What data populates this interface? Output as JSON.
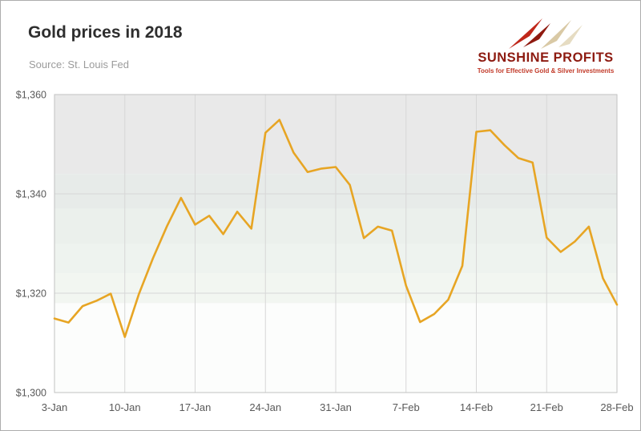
{
  "header": {
    "title": "Gold prices in 2018",
    "source": "Source: St. Louis Fed"
  },
  "logo": {
    "name": "SUNSHINE PROFITS",
    "tagline": "Tools for Effective Gold & Silver Investments",
    "brand_color": "#8d1a10",
    "tagline_color": "#c23b2a"
  },
  "chart_data": {
    "type": "line",
    "title": "Gold prices in 2018",
    "source_note": "Source: St. Louis Fed",
    "x": [
      "3-Jan",
      "4-Jan",
      "5-Jan",
      "8-Jan",
      "9-Jan",
      "10-Jan",
      "11-Jan",
      "12-Jan",
      "15-Jan",
      "16-Jan",
      "17-Jan",
      "18-Jan",
      "19-Jan",
      "22-Jan",
      "23-Jan",
      "24-Jan",
      "25-Jan",
      "26-Jan",
      "29-Jan",
      "30-Jan",
      "31-Jan",
      "1-Feb",
      "2-Feb",
      "5-Feb",
      "6-Feb",
      "7-Feb",
      "8-Feb",
      "9-Feb",
      "12-Feb",
      "13-Feb",
      "14-Feb",
      "15-Feb",
      "16-Feb",
      "19-Feb",
      "20-Feb",
      "21-Feb",
      "22-Feb",
      "23-Feb",
      "26-Feb",
      "27-Feb",
      "28-Feb"
    ],
    "values": [
      1314.9,
      1314.1,
      1317.4,
      1318.5,
      1319.9,
      1311.2,
      1319.8,
      1327.0,
      1333.5,
      1339.2,
      1333.8,
      1335.6,
      1331.9,
      1336.4,
      1333.0,
      1352.3,
      1354.9,
      1348.3,
      1344.4,
      1345.1,
      1345.4,
      1341.8,
      1331.1,
      1333.4,
      1332.6,
      1321.5,
      1314.2,
      1315.8,
      1318.7,
      1325.5,
      1352.5,
      1352.8,
      1349.8,
      1347.2,
      1346.3,
      1331.2,
      1328.3,
      1330.4,
      1333.4,
      1323.0,
      1317.7
    ],
    "ylim": [
      1300,
      1360
    ],
    "grid": true,
    "legend": false,
    "y_ticks": [
      {
        "value": 1300,
        "label": "$1,300"
      },
      {
        "value": 1320,
        "label": "$1,320"
      },
      {
        "value": 1340,
        "label": "$1,340"
      },
      {
        "value": 1360,
        "label": "$1,360"
      }
    ],
    "x_ticks": [
      {
        "index": 0,
        "label": "3-Jan"
      },
      {
        "index": 5,
        "label": "10-Jan"
      },
      {
        "index": 10,
        "label": "17-Jan"
      },
      {
        "index": 15,
        "label": "24-Jan"
      },
      {
        "index": 20,
        "label": "31-Jan"
      },
      {
        "index": 25,
        "label": "7-Feb"
      },
      {
        "index": 30,
        "label": "14-Feb"
      },
      {
        "index": 35,
        "label": "21-Feb"
      },
      {
        "index": 40,
        "label": "28-Feb"
      }
    ],
    "style": {
      "line_color": "#E7A524",
      "line_width": 2.6,
      "grid_color": "#d7d7d7",
      "frame_color": "#c2c2c2",
      "tick_color": "#595959",
      "bands": [
        {
          "from": 1344,
          "to": 1360,
          "color": "#e9e9e9"
        },
        {
          "from": 1337,
          "to": 1344,
          "color": "#e7ebe9"
        },
        {
          "from": 1330,
          "to": 1337,
          "color": "#ebf0ec"
        },
        {
          "from": 1324,
          "to": 1330,
          "color": "#eef3ef"
        },
        {
          "from": 1318,
          "to": 1324,
          "color": "#f2f6f1"
        },
        {
          "from": 1300,
          "to": 1318,
          "color": "#fcfdfc"
        }
      ]
    }
  }
}
